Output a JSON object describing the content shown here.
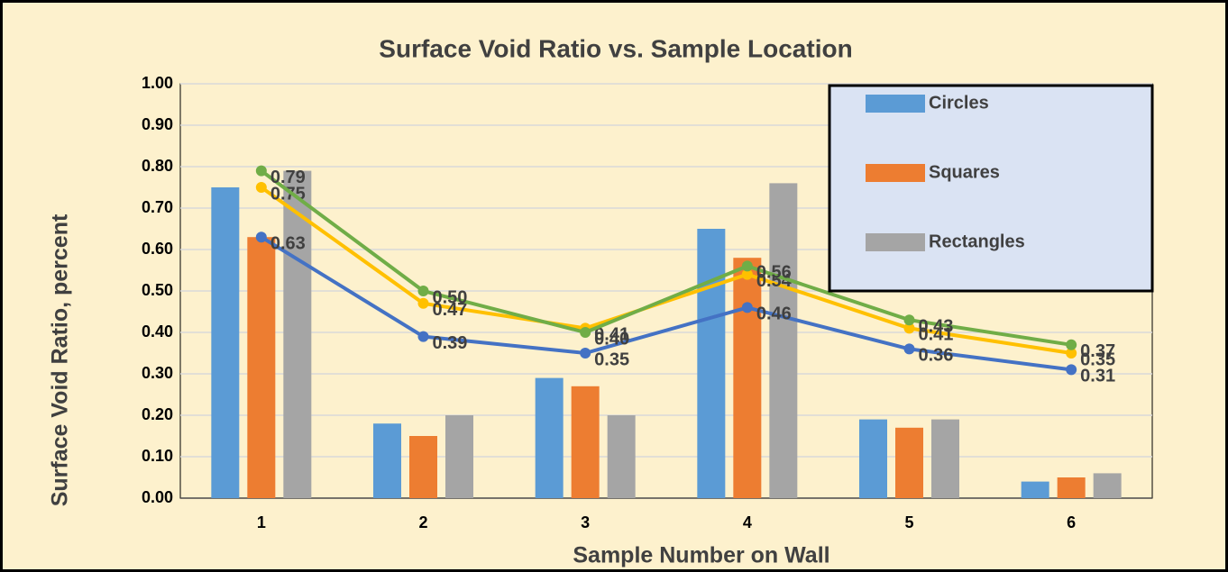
{
  "chart_data": {
    "type": "bar",
    "title": "Surface Void Ratio vs. Sample Location",
    "x_label": "Sample Number on Wall",
    "y_label": "Surface Void Ratio, percent",
    "categories": [
      "1",
      "2",
      "3",
      "4",
      "5",
      "6"
    ],
    "ylim": [
      0,
      1
    ],
    "yticks": [
      {
        "value": 0,
        "label": "0.00"
      },
      {
        "value": 0.1,
        "label": "0.10"
      },
      {
        "value": 0.2,
        "label": "0.20"
      },
      {
        "value": 0.3,
        "label": "0.30"
      },
      {
        "value": 0.4,
        "label": "0.40"
      },
      {
        "value": 0.5,
        "label": "0.50"
      },
      {
        "value": 0.6,
        "label": "0.60"
      },
      {
        "value": 0.7,
        "label": "0.70"
      },
      {
        "value": 0.8,
        "label": "0.80"
      },
      {
        "value": 0.9,
        "label": "0.90"
      },
      {
        "value": 1,
        "label": "1.00"
      }
    ],
    "grid": true,
    "legend": "upper right",
    "series": [
      {
        "name": "Circles",
        "type": "bar",
        "color": "#5b9bd5",
        "values": [
          0.75,
          0.18,
          0.29,
          0.65,
          0.19,
          0.04
        ]
      },
      {
        "name": "Squares",
        "type": "bar",
        "color": "#ed7d31",
        "values": [
          0.63,
          0.15,
          0.27,
          0.58,
          0.17,
          0.05
        ]
      },
      {
        "name": "Rectangles",
        "type": "bar",
        "color": "#a5a5a5",
        "values": [
          0.79,
          0.2,
          0.2,
          0.76,
          0.19,
          0.06
        ]
      },
      {
        "type": "line",
        "color": "#4472c4",
        "values": [
          0.63,
          0.39,
          0.35,
          0.46,
          0.36,
          0.31
        ],
        "value_labels": [
          "0.63",
          "0.39",
          "0.35",
          "0.46",
          "0.36",
          "0.31"
        ]
      },
      {
        "type": "line",
        "color": "#ffc000",
        "values": [
          0.75,
          0.47,
          0.41,
          0.54,
          0.41,
          0.35
        ],
        "value_labels": [
          "0.75",
          "0.47",
          "0.41",
          "0.54",
          "0.41",
          "0.35"
        ]
      },
      {
        "type": "line",
        "color": "#70ad47",
        "values": [
          0.79,
          0.5,
          0.4,
          0.56,
          0.43,
          0.37
        ],
        "value_labels": [
          "0.79",
          "0.50",
          "0.40",
          "0.56",
          "0.43",
          "0.37"
        ]
      }
    ]
  }
}
